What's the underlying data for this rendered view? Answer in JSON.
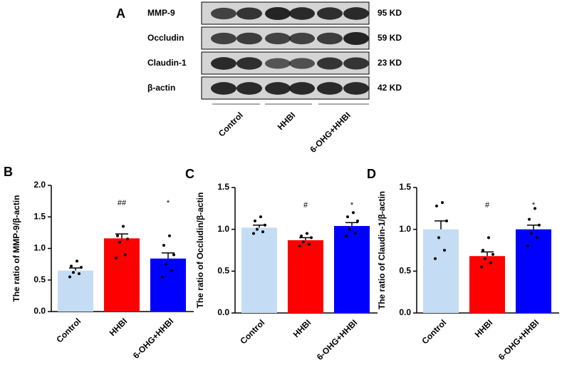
{
  "blot": {
    "panel_label": "A",
    "proteins": [
      "MMP-9",
      "Occludin",
      "Claudin-1",
      "β-actin"
    ],
    "sizes": [
      "95 KD",
      "59 KD",
      "23 KD",
      "42 KD"
    ],
    "groups": [
      "Control",
      "HHBI",
      "6-OHG+HHBI"
    ]
  },
  "chart_data": [
    {
      "type": "bar",
      "panel_label": "B",
      "ylabel": "The ratio of MMP-9/β-actin",
      "categories": [
        "Control",
        "HHBI",
        "6-OHG+HHBI"
      ],
      "colors": [
        "#c5dcf5",
        "#ff0000",
        "#0000ff"
      ],
      "values": [
        0.65,
        1.16,
        0.84
      ],
      "errors": [
        0.04,
        0.07,
        0.09
      ],
      "points": [
        [
          0.55,
          0.6,
          0.62,
          0.7,
          0.72,
          0.8
        ],
        [
          0.85,
          0.9,
          1.1,
          1.15,
          1.2,
          1.35
        ],
        [
          0.55,
          0.65,
          0.75,
          0.9,
          1.05,
          1.2
        ]
      ],
      "annotations": [
        null,
        "##",
        "*"
      ],
      "ylim": [
        0,
        2
      ],
      "yticks": [
        {
          "value": 0,
          "label": "0.0"
        },
        {
          "value": 0.5,
          "label": "0.5"
        },
        {
          "value": 1,
          "label": "1.0"
        },
        {
          "value": 1.5,
          "label": "1.5"
        },
        {
          "value": 2,
          "label": "2.0"
        }
      ]
    },
    {
      "type": "bar",
      "panel_label": "C",
      "ylabel": "The ratio of Occludin/β-actin",
      "categories": [
        "Control",
        "HHBI",
        "6-OHG+HHBI"
      ],
      "colors": [
        "#c5dcf5",
        "#ff0000",
        "#0000ff"
      ],
      "values": [
        1.02,
        0.87,
        1.04
      ],
      "errors": [
        0.03,
        0.03,
        0.04
      ],
      "points": [
        [
          0.95,
          0.97,
          1.0,
          1.05,
          1.1,
          1.15
        ],
        [
          0.8,
          0.82,
          0.85,
          0.9,
          0.92,
          0.95
        ],
        [
          0.92,
          0.95,
          1.0,
          1.1,
          1.15,
          1.2
        ]
      ],
      "annotations": [
        null,
        "#",
        "*"
      ],
      "ylim": [
        0,
        1.5
      ],
      "yticks": [
        {
          "value": 0,
          "label": "0.0"
        },
        {
          "value": 0.5,
          "label": "0.5"
        },
        {
          "value": 1,
          "label": "1.0"
        },
        {
          "value": 1.5,
          "label": "1.5"
        }
      ]
    },
    {
      "type": "bar",
      "panel_label": "D",
      "ylabel": "The ratio of Claudin-1/β-actin",
      "categories": [
        "Control",
        "HHBI",
        "6-OHG+HHBI"
      ],
      "colors": [
        "#c5dcf5",
        "#ff0000",
        "#0000ff"
      ],
      "values": [
        1.0,
        0.68,
        1.0
      ],
      "errors": [
        0.1,
        0.05,
        0.05
      ],
      "points": [
        [
          0.65,
          0.75,
          0.9,
          1.1,
          1.28,
          1.32
        ],
        [
          0.55,
          0.6,
          0.65,
          0.7,
          0.75,
          0.9
        ],
        [
          0.8,
          0.9,
          0.95,
          1.05,
          1.12,
          1.25
        ]
      ],
      "annotations": [
        null,
        "#",
        "*"
      ],
      "ylim": [
        0,
        1.5
      ],
      "yticks": [
        {
          "value": 0,
          "label": "0.0"
        },
        {
          "value": 0.5,
          "label": "0.5"
        },
        {
          "value": 1,
          "label": "1.0"
        },
        {
          "value": 1.5,
          "label": "1.5"
        }
      ]
    }
  ]
}
